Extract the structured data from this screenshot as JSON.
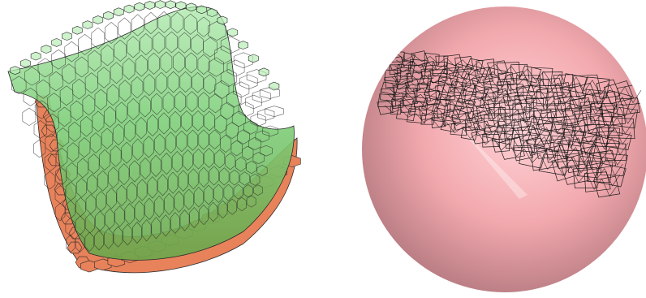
{
  "figure": {
    "panels": [
      {
        "id": "hex-surface",
        "colors": {
          "lower_layer_fill": "#e8825a",
          "upper_layer_fill": "#7fcf7a",
          "upper_layer_fill_light": "#b8ecb7",
          "edge": "#2a2a2a"
        }
      },
      {
        "id": "sphere-wireframe",
        "colors": {
          "sphere_light": "#ffd2d6",
          "sphere_mid": "#f2a9ae",
          "sphere_dark": "#b57a80",
          "wire": "#1a1a1a"
        }
      }
    ]
  }
}
